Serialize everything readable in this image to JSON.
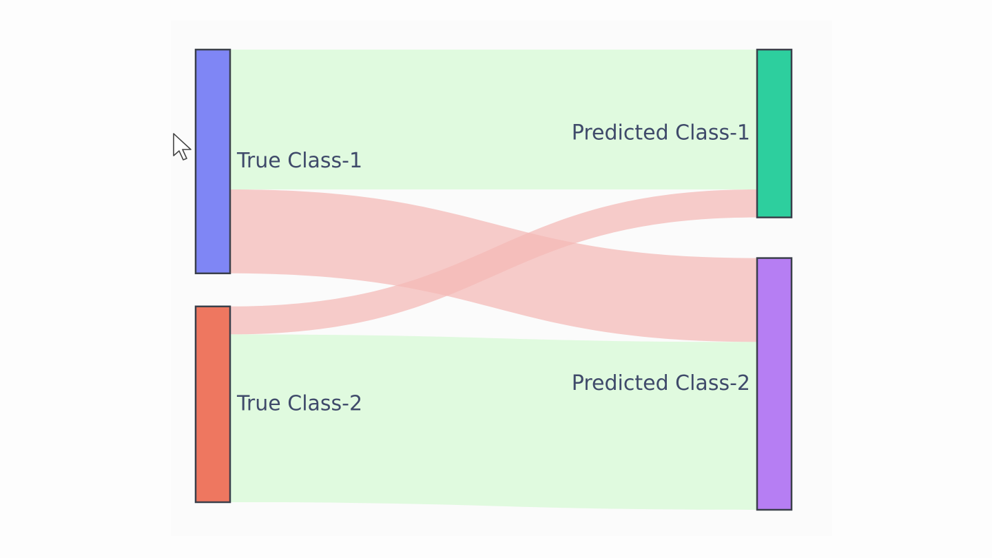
{
  "chart_data": {
    "type": "sankey",
    "nodes": [
      {
        "id": "t1",
        "label": "True Class-1",
        "column": "left",
        "color": "#7f86f5"
      },
      {
        "id": "t2",
        "label": "True Class-2",
        "column": "left",
        "color": "#ee7760"
      },
      {
        "id": "p1",
        "label": "Predicted Class-1",
        "column": "right",
        "color": "#2dcf9e"
      },
      {
        "id": "p2",
        "label": "Predicted Class-2",
        "column": "right",
        "color": "#b67ef3"
      }
    ],
    "links": [
      {
        "source": "t1",
        "target": "p1",
        "value": 50,
        "kind": "correct"
      },
      {
        "source": "t1",
        "target": "p2",
        "value": 30,
        "kind": "error"
      },
      {
        "source": "t2",
        "target": "p1",
        "value": 10,
        "kind": "error"
      },
      {
        "source": "t2",
        "target": "p2",
        "value": 60,
        "kind": "correct"
      }
    ],
    "link_colors": {
      "correct": "#e0fadf",
      "error": "#f4b9b5"
    }
  }
}
